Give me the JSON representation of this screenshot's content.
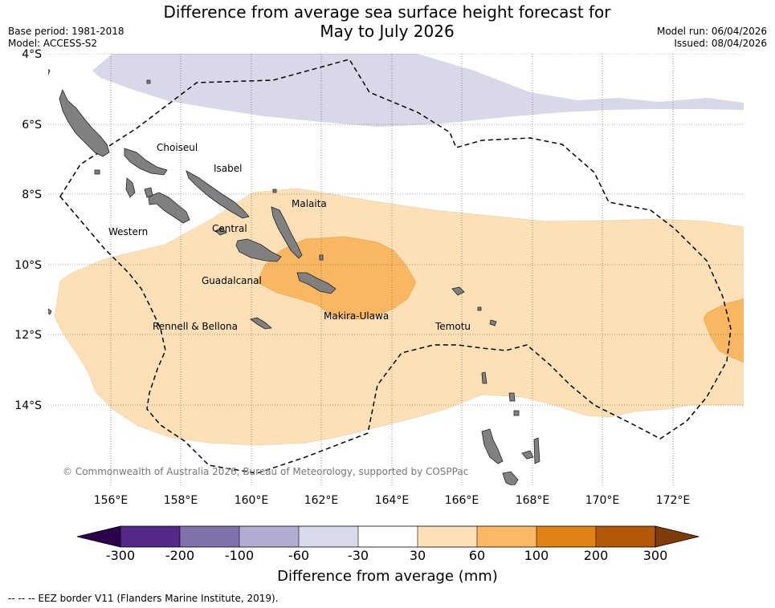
{
  "header": {
    "title_line1": "Difference from average sea surface height forecast for",
    "title_line2": "May to July 2026",
    "base_period": "Base period: 1981-2018",
    "model": "Model: ACCESS-S2",
    "model_run": "Model run: 06/04/2026",
    "issued": "Issued: 08/04/2026"
  },
  "map": {
    "lat_labels": [
      "4°S",
      "6°S",
      "8°S",
      "10°S",
      "12°S",
      "14°S"
    ],
    "lon_labels": [
      "156°E",
      "158°E",
      "160°E",
      "162°E",
      "164°E",
      "166°E",
      "168°E",
      "170°E",
      "172°E"
    ],
    "provinces": [
      "Choiseul",
      "Isabel",
      "Malaita",
      "Western",
      "Central",
      "Guadalcanal",
      "Makira-Ulawa",
      "Rennell & Bellona",
      "Temotu"
    ],
    "copyright": "© Commonwealth of Australia 2026, Bureau of Meteorology, supported by COSPPac",
    "colors": {
      "land": "#808080",
      "neg_30_60": "#d8d8e8",
      "pos_30_60": "#fde0b6",
      "pos_60_100": "#f9b762"
    }
  },
  "colorbar": {
    "ticks": [
      "-300",
      "-200",
      "-100",
      "-60",
      "-30",
      "30",
      "60",
      "100",
      "200",
      "300"
    ],
    "colors": [
      "#2d004b",
      "#542788",
      "#8073ac",
      "#b2abd2",
      "#d8daeb",
      "#ffffff",
      "#fee0b6",
      "#fdb863",
      "#e08214",
      "#b35806",
      "#7f3b08"
    ],
    "title": "Difference from average (mm)"
  },
  "legend": {
    "eez_note": "--  --  -- EEZ border V11 (Flanders Marine Institute, 2019)."
  }
}
